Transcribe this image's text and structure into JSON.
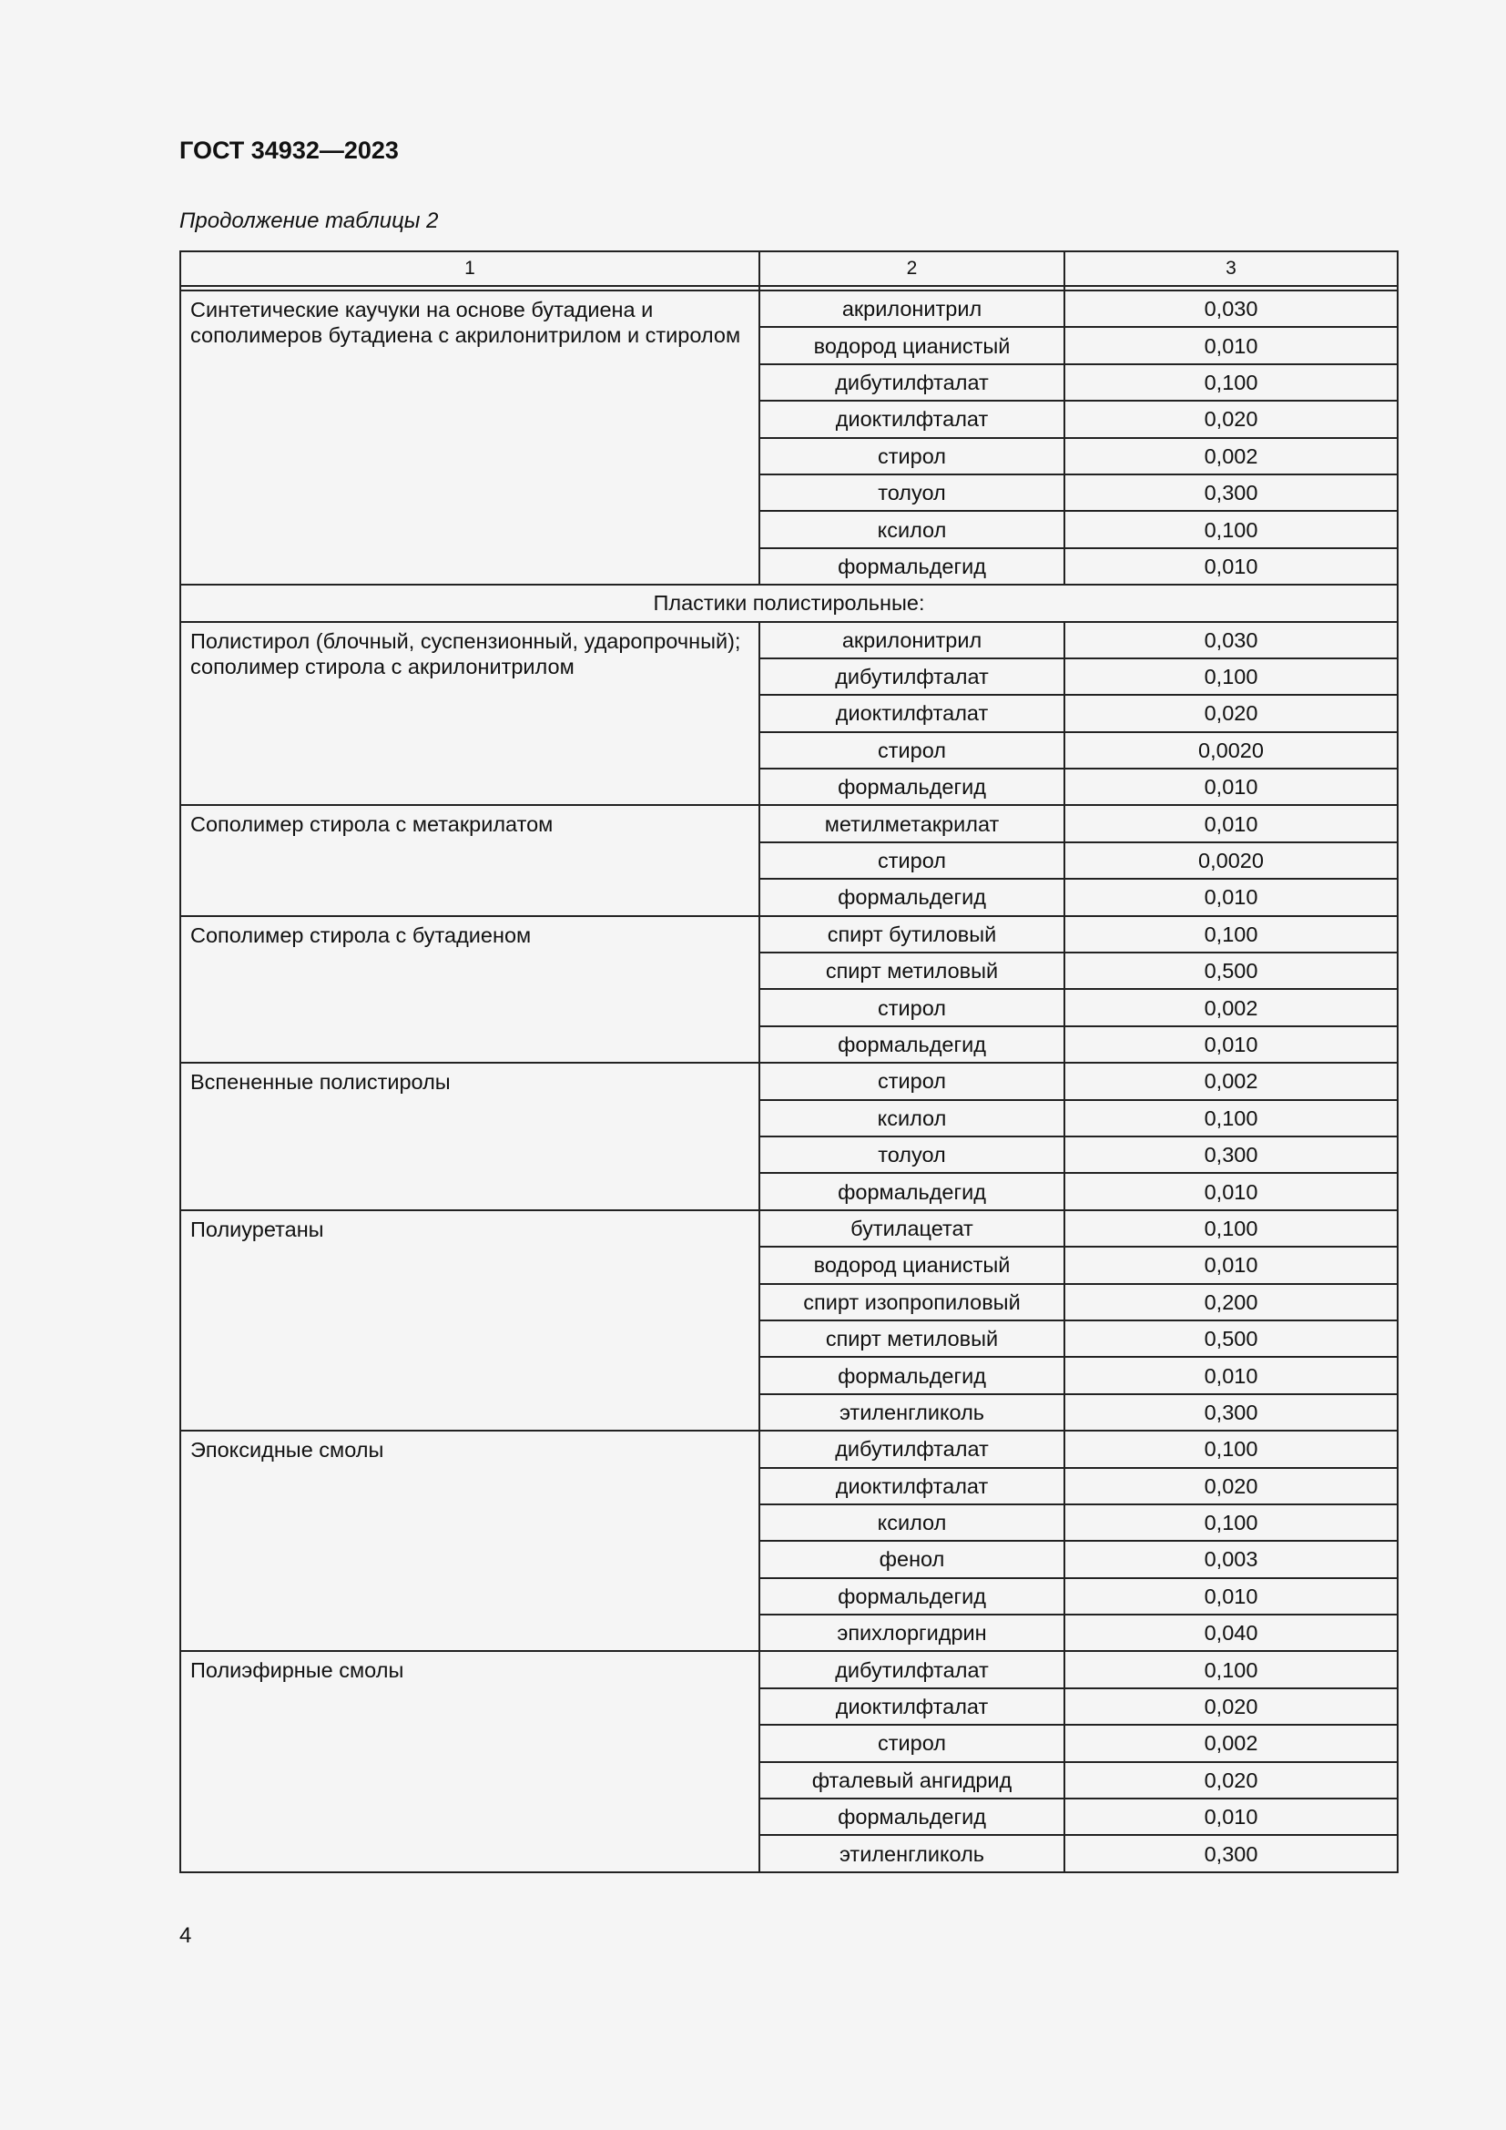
{
  "header": {
    "title": "ГОСТ 34932—2023"
  },
  "caption": "Продолжение таблицы 2",
  "table": {
    "columns": [
      "1",
      "2",
      "3"
    ],
    "sections": [
      {
        "material": "Синтетические каучуки на основе бутадиена и сополимеров бутадиена с акрилонитрилом и стиролом",
        "rows": [
          [
            "акрилонитрил",
            "0,030"
          ],
          [
            "водород цианистый",
            "0,010"
          ],
          [
            "дибутилфталат",
            "0,100"
          ],
          [
            "диоктилфталат",
            "0,020"
          ],
          [
            "стирол",
            "0,002"
          ],
          [
            "толуол",
            "0,300"
          ],
          [
            "ксилол",
            "0,100"
          ],
          [
            "формальдегид",
            "0,010"
          ]
        ]
      },
      {
        "group": "Пластики полистирольные:"
      },
      {
        "material": "Полистирол (блочный, суспензионный, ударопрочный); сополимер стирола с акрилонитрилом",
        "rows": [
          [
            "акрилонитрил",
            "0,030"
          ],
          [
            "дибутилфталат",
            "0,100"
          ],
          [
            "диоктилфталат",
            "0,020"
          ],
          [
            "стирол",
            "0,0020"
          ],
          [
            "формальдегид",
            "0,010"
          ]
        ]
      },
      {
        "material": "Сополимер стирола с метакрилатом",
        "rows": [
          [
            "метилметакрилат",
            "0,010"
          ],
          [
            "стирол",
            "0,0020"
          ],
          [
            "формальдегид",
            "0,010"
          ]
        ]
      },
      {
        "material": "Сополимер стирола с бутадиеном",
        "rows": [
          [
            "спирт бутиловый",
            "0,100"
          ],
          [
            "спирт метиловый",
            "0,500"
          ],
          [
            "стирол",
            "0,002"
          ],
          [
            "формальдегид",
            "0,010"
          ]
        ]
      },
      {
        "material": "Вспененные полистиролы",
        "rows": [
          [
            "стирол",
            "0,002"
          ],
          [
            "ксилол",
            "0,100"
          ],
          [
            "толуол",
            "0,300"
          ],
          [
            "формальдегид",
            "0,010"
          ]
        ]
      },
      {
        "material": "Полиуретаны",
        "rows": [
          [
            "бутилацетат",
            "0,100"
          ],
          [
            "водород цианистый",
            "0,010"
          ],
          [
            "спирт изопропиловый",
            "0,200"
          ],
          [
            "спирт метиловый",
            "0,500"
          ],
          [
            "формальдегид",
            "0,010"
          ],
          [
            "этиленгликоль",
            "0,300"
          ]
        ]
      },
      {
        "material": "Эпоксидные смолы",
        "rows": [
          [
            "дибутилфталат",
            "0,100"
          ],
          [
            "диоктилфталат",
            "0,020"
          ],
          [
            "ксилол",
            "0,100"
          ],
          [
            "фенол",
            "0,003"
          ],
          [
            "формальдегид",
            "0,010"
          ],
          [
            "эпихлоргидрин",
            "0,040"
          ]
        ]
      },
      {
        "material": "Полиэфирные смолы",
        "rows": [
          [
            "дибутилфталат",
            "0,100"
          ],
          [
            "диоктилфталат",
            "0,020"
          ],
          [
            "стирол",
            "0,002"
          ],
          [
            "фталевый ангидрид",
            "0,020"
          ],
          [
            "формальдегид",
            "0,010"
          ],
          [
            "этиленгликоль",
            "0,300"
          ]
        ]
      }
    ]
  },
  "footer": {
    "page_number": "4"
  }
}
